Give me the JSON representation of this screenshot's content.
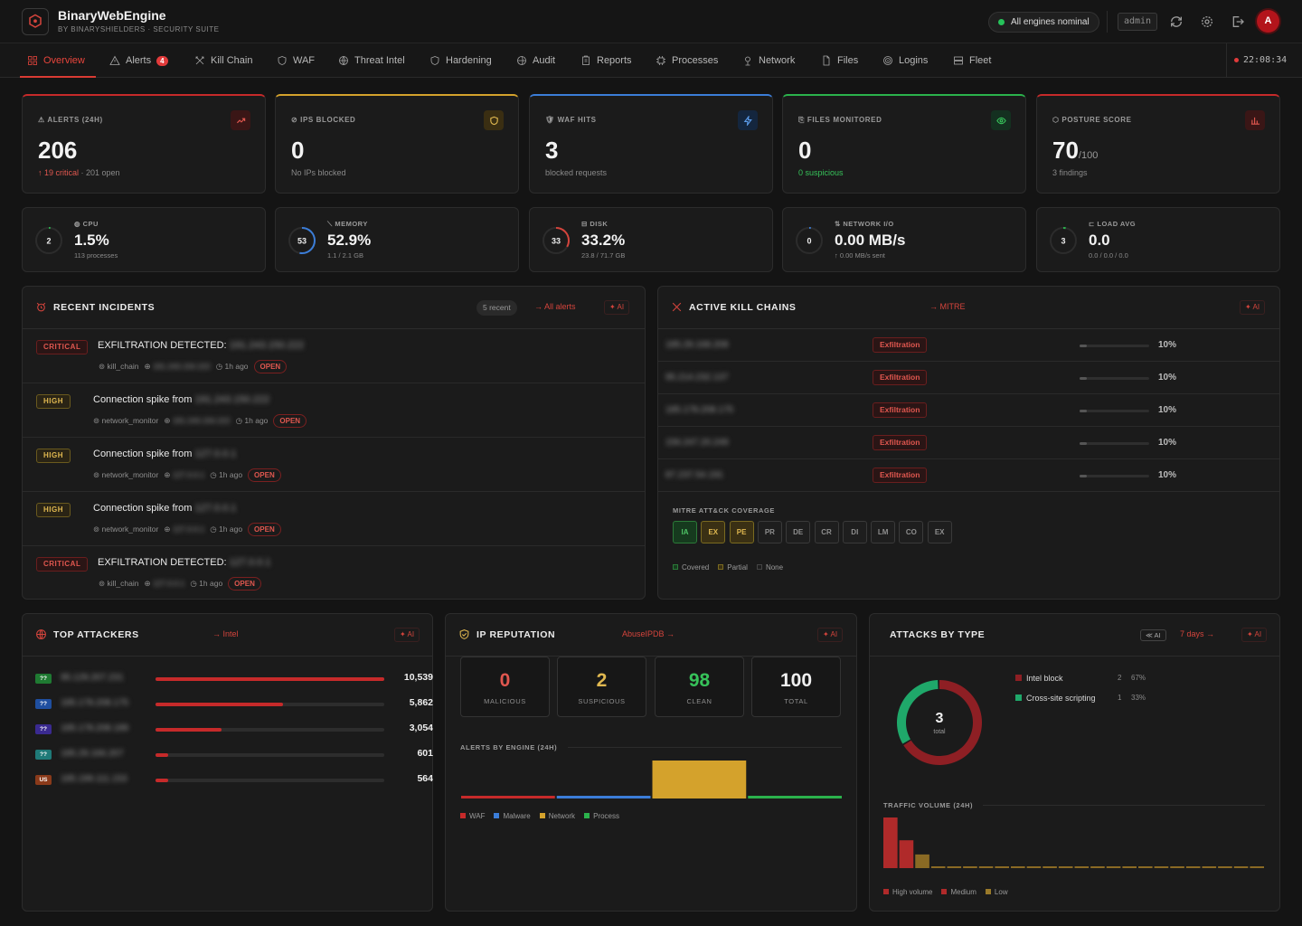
{
  "app": {
    "title": "BinaryWebEngine",
    "subtitle": "BY BINARYSHIELDERS · SECURITY SUITE"
  },
  "topbar": {
    "status": "All engines nominal",
    "user": "admin",
    "avatar": "A",
    "clock": "22:08:34"
  },
  "nav": {
    "tabs": [
      {
        "label": "Overview",
        "icon": "grid-icon",
        "active": true
      },
      {
        "label": "Alerts",
        "icon": "warning-icon",
        "badge": "4"
      },
      {
        "label": "Kill Chain",
        "icon": "crossed-swords-icon"
      },
      {
        "label": "WAF",
        "icon": "shield-icon"
      },
      {
        "label": "Threat Intel",
        "icon": "globe-icon"
      },
      {
        "label": "Hardening",
        "icon": "shield-icon"
      },
      {
        "label": "Audit",
        "icon": "globe-icon"
      },
      {
        "label": "Reports",
        "icon": "clipboard-icon"
      },
      {
        "label": "Processes",
        "icon": "chip-icon"
      },
      {
        "label": "Network",
        "icon": "pin-icon"
      },
      {
        "label": "Files",
        "icon": "file-icon"
      },
      {
        "label": "Logins",
        "icon": "fingerprint-icon"
      },
      {
        "label": "Fleet",
        "icon": "server-icon"
      }
    ]
  },
  "kpis": [
    {
      "label": "ALERTS (24H)",
      "value": "206",
      "unit": "",
      "sub_highlight": "↑ 19 critical",
      "sub": "· 201 open",
      "accent": "#c62a2a"
    },
    {
      "label": "IPS BLOCKED",
      "value": "0",
      "unit": "",
      "sub_highlight": "",
      "sub": "No IPs blocked",
      "accent": "#d4a22c"
    },
    {
      "label": "WAF HITS",
      "value": "3",
      "unit": "",
      "sub_highlight": "",
      "sub": "blocked requests",
      "accent": "#3b7dd8"
    },
    {
      "label": "FILES MONITORED",
      "value": "0",
      "unit": "",
      "sub_highlight": "0 suspicious",
      "sub": "",
      "accent": "#2bb24c"
    },
    {
      "label": "POSTURE SCORE",
      "value": "70",
      "unit": "/100",
      "sub_highlight": "",
      "sub": "3 findings",
      "accent": "#c62a2a"
    }
  ],
  "metrics": [
    {
      "label": "CPU",
      "ring": "2",
      "value": "1.5%",
      "sub": "113 processes",
      "level": 0.015,
      "color": "#2bb24c"
    },
    {
      "label": "MEMORY",
      "ring": "53",
      "value": "52.9%",
      "sub": "1.1 / 2.1 GB",
      "level": 0.529,
      "color": "#3b7dd8"
    },
    {
      "label": "DISK",
      "ring": "33",
      "value": "33.2%",
      "sub": "23.8 / 71.7 GB",
      "level": 0.332,
      "color": "#d4443c"
    },
    {
      "label": "NETWORK I/O",
      "ring": "0",
      "value": "0.00 MB/s",
      "sub": "↑ 0.00 MB/s sent",
      "level": 0.0,
      "color": "#3b7dd8"
    },
    {
      "label": "LOAD AVG",
      "ring": "3",
      "value": "0.0",
      "sub": "0.0 / 0.0 / 0.0",
      "level": 0.03,
      "color": "#2bb24c"
    }
  ],
  "incidents": {
    "title": "RECENT INCIDENTS",
    "count": "5 recent",
    "link": "→ All alerts",
    "ai": "✦ AI",
    "rows": [
      {
        "severity": "CRITICAL",
        "title": "EXFILTRATION DETECTED:",
        "ip": "191.243.150.222",
        "source": "kill_chain",
        "src_ip": "191.243.150.222",
        "time": "1h ago",
        "status": "OPEN"
      },
      {
        "severity": "HIGH",
        "title": "Connection spike from",
        "ip": "191.243.150.222",
        "source": "network_monitor",
        "src_ip": "191.243.150.222",
        "time": "1h ago",
        "status": "OPEN"
      },
      {
        "severity": "HIGH",
        "title": "Connection spike from",
        "ip": "127.0.0.1",
        "source": "network_monitor",
        "src_ip": "127.0.0.1",
        "time": "1h ago",
        "status": "OPEN"
      },
      {
        "severity": "HIGH",
        "title": "Connection spike from",
        "ip": "127.0.0.1",
        "source": "network_monitor",
        "src_ip": "127.0.0.1",
        "time": "1h ago",
        "status": "OPEN"
      },
      {
        "severity": "CRITICAL",
        "title": "EXFILTRATION DETECTED:",
        "ip": "127.0.0.1",
        "source": "kill_chain",
        "src_ip": "127.0.0.1",
        "time": "1h ago",
        "status": "OPEN"
      }
    ]
  },
  "killchains": {
    "title": "ACTIVE KILL CHAINS",
    "link": "→ MITRE",
    "ai": "✦ AI",
    "rows": [
      {
        "ip": "185.29.168.208",
        "stage": "Exfiltration",
        "pct": "10%",
        "level": 0.1
      },
      {
        "ip": "95.214.232.137",
        "stage": "Exfiltration",
        "pct": "10%",
        "level": 0.1
      },
      {
        "ip": "185.178.208.175",
        "stage": "Exfiltration",
        "pct": "10%",
        "level": 0.1
      },
      {
        "ip": "156.247.20.249",
        "stage": "Exfiltration",
        "pct": "10%",
        "level": 0.1
      },
      {
        "ip": "87.237.54.191",
        "stage": "Exfiltration",
        "pct": "10%",
        "level": 0.1
      }
    ],
    "mitre_title": "MITRE ATT&CK COVERAGE",
    "mitre": [
      {
        "code": "IA",
        "state": "covered"
      },
      {
        "code": "EX",
        "state": "partial"
      },
      {
        "code": "PE",
        "state": "partial"
      },
      {
        "code": "PR",
        "state": "none"
      },
      {
        "code": "DE",
        "state": "none"
      },
      {
        "code": "CR",
        "state": "none"
      },
      {
        "code": "DI",
        "state": "none"
      },
      {
        "code": "LM",
        "state": "none"
      },
      {
        "code": "CO",
        "state": "none"
      },
      {
        "code": "EX",
        "state": "none"
      }
    ],
    "legend": [
      "Covered",
      "Partial",
      "None"
    ]
  },
  "attackers": {
    "title": "TOP ATTACKERS",
    "link": "→ Intel",
    "ai": "✦ AI",
    "rows": [
      {
        "flag": "??",
        "flag_color": "#1f7a32",
        "ip": "95.129.207.231",
        "count": "10,539",
        "level": 1.0
      },
      {
        "flag": "??",
        "flag_color": "#1f4fa0",
        "ip": "185.178.208.175",
        "count": "5,862",
        "level": 0.556
      },
      {
        "flag": "??",
        "flag_color": "#3a2a90",
        "ip": "185.178.208.189",
        "count": "3,054",
        "level": 0.29
      },
      {
        "flag": "??",
        "flag_color": "#1f7a78",
        "ip": "185.29.166.207",
        "count": "601",
        "level": 0.057
      },
      {
        "flag": "US",
        "flag_color": "#8a3a1a",
        "ip": "185.199.111.153",
        "count": "564",
        "level": 0.054
      }
    ]
  },
  "reputation": {
    "title": "IP REPUTATION",
    "link": "AbuseIPDB →",
    "ai": "✦ AI",
    "cards": [
      {
        "value": "0",
        "label": "MALICIOUS",
        "color": "#e0574f"
      },
      {
        "value": "2",
        "label": "SUSPICIOUS",
        "color": "#e0b850"
      },
      {
        "value": "98",
        "label": "CLEAN",
        "color": "#37c25a"
      },
      {
        "value": "100",
        "label": "TOTAL",
        "color": "#f0f0f0"
      }
    ],
    "engine_title": "ALERTS BY ENGINE (24H)",
    "engines": [
      {
        "name": "WAF",
        "color": "#c62a2a",
        "level": 0.05
      },
      {
        "name": "Malware",
        "color": "#3b7dd8",
        "level": 0.05
      },
      {
        "name": "Network",
        "color": "#d4a22c",
        "level": 1.0
      },
      {
        "name": "Process",
        "color": "#2bb24c",
        "level": 0.05
      }
    ]
  },
  "attacks": {
    "title": "ATTACKS BY TYPE",
    "ai_chip": "≪ AI",
    "range": "7 days →",
    "ai": "✦ AI",
    "total": "3",
    "total_label": "total",
    "types": [
      {
        "name": "Intel block",
        "count": "2",
        "pct": "67%",
        "value": 2,
        "color": "#8e1f24"
      },
      {
        "name": "Cross-site scripting",
        "count": "1",
        "pct": "33%",
        "value": 1,
        "color": "#1fa86a"
      }
    ],
    "traffic_title": "TRAFFIC VOLUME (24H)",
    "traffic": [
      1.0,
      0.55,
      0.27,
      0.03,
      0.03,
      0.03,
      0.03,
      0.03,
      0.03,
      0.03,
      0.03,
      0.03,
      0.03,
      0.03,
      0.03,
      0.03,
      0.03,
      0.03,
      0.03,
      0.03,
      0.03,
      0.03,
      0.03,
      0.03
    ],
    "traffic_legend": [
      {
        "name": "High volume",
        "color": "#b02a2a"
      },
      {
        "name": "Medium",
        "color": "#b02a2a"
      },
      {
        "name": "Low",
        "color": "#9a7a2a"
      }
    ]
  }
}
